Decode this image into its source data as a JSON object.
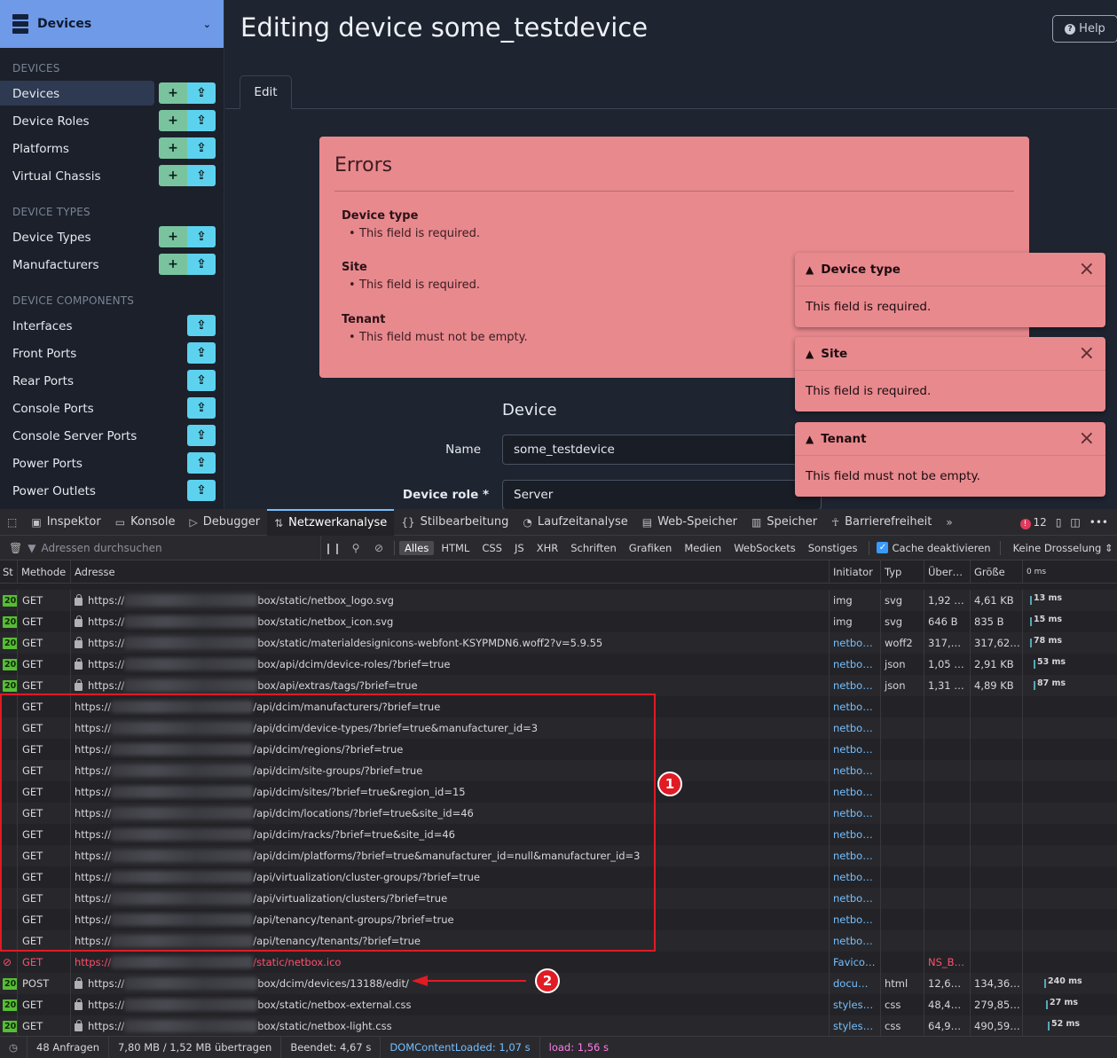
{
  "sidebar": {
    "header": {
      "title": "Devices"
    },
    "sections": [
      {
        "title": "DEVICES",
        "items": [
          {
            "label": "Devices",
            "add": true,
            "active": true
          },
          {
            "label": "Device Roles",
            "add": true
          },
          {
            "label": "Platforms",
            "add": true
          },
          {
            "label": "Virtual Chassis",
            "add": true
          }
        ]
      },
      {
        "title": "DEVICE TYPES",
        "items": [
          {
            "label": "Device Types",
            "add": true
          },
          {
            "label": "Manufacturers",
            "add": true
          }
        ]
      },
      {
        "title": "DEVICE COMPONENTS",
        "items": [
          {
            "label": "Interfaces",
            "add": false
          },
          {
            "label": "Front Ports",
            "add": false
          },
          {
            "label": "Rear Ports",
            "add": false
          },
          {
            "label": "Console Ports",
            "add": false
          },
          {
            "label": "Console Server Ports",
            "add": false
          },
          {
            "label": "Power Ports",
            "add": false
          },
          {
            "label": "Power Outlets",
            "add": false
          }
        ]
      }
    ],
    "add_glyph": "+",
    "import_glyph": "⇪"
  },
  "main": {
    "title": "Editing device some_testdevice",
    "help_label": "Help",
    "tab_edit": "Edit",
    "errors": {
      "heading": "Errors",
      "items": [
        {
          "field": "Device type",
          "message": "This field is required."
        },
        {
          "field": "Site",
          "message": "This field is required."
        },
        {
          "field": "Tenant",
          "message": "This field must not be empty."
        }
      ]
    },
    "form": {
      "section": "Device",
      "name_label": "Name",
      "name_value": "some_testdevice",
      "role_label": "Device role",
      "role_required": "*",
      "role_value": "Server"
    }
  },
  "toasts": [
    {
      "title": "Device type",
      "message": "This field is required."
    },
    {
      "title": "Site",
      "message": "This field is required."
    },
    {
      "title": "Tenant",
      "message": "This field must not be empty."
    }
  ],
  "devtools": {
    "tabs": [
      "Inspektor",
      "Konsole",
      "Debugger",
      "Netzwerkanalyse",
      "Stilbearbeitung",
      "Laufzeitanalyse",
      "Web-Speicher",
      "Speicher",
      "Barrierefreiheit"
    ],
    "active_tab": "Netzwerkanalyse",
    "error_count": "12",
    "filter_placeholder": "Adressen durchsuchen",
    "filter_types": [
      "Alles",
      "HTML",
      "CSS",
      "JS",
      "XHR",
      "Schriften",
      "Grafiken",
      "Medien",
      "WebSockets",
      "Sonstiges"
    ],
    "cache_label": "Cache deaktivieren",
    "throttle_label": "Keine Drosselung ⇕",
    "columns": {
      "status": "St",
      "method": "Methode",
      "address": "Adresse",
      "initiator": "Initiator",
      "type": "Typ",
      "transferred": "Über…",
      "size": "Größe",
      "waterfall": "0 ms"
    },
    "rows": [
      {
        "status": "20",
        "method": "GET",
        "scheme": "https://",
        "path": "box/static/netbox_logo.svg",
        "initiator": "img",
        "type": "svg",
        "transferred": "1,92 …",
        "size": "4,61 KB",
        "time": "13 ms",
        "lock": true
      },
      {
        "status": "20",
        "method": "GET",
        "scheme": "https://",
        "path": "box/static/netbox_icon.svg",
        "initiator": "img",
        "type": "svg",
        "transferred": "646 B",
        "size": "835 B",
        "time": "15 ms",
        "lock": true
      },
      {
        "status": "20",
        "method": "GET",
        "scheme": "https://",
        "path": "box/static/materialdesignicons-webfont-KSYPMDN6.woff2?v=5.9.55",
        "initiator": "netbo…",
        "type": "woff2",
        "transferred": "317,…",
        "size": "317,62…",
        "time": "78 ms",
        "lock": true
      },
      {
        "status": "20",
        "method": "GET",
        "scheme": "https://",
        "path": "box/api/dcim/device-roles/?brief=true",
        "initiator": "netbo…",
        "type": "json",
        "transferred": "1,05 …",
        "size": "2,91 KB",
        "time": "53 ms",
        "lock": true
      },
      {
        "status": "20",
        "method": "GET",
        "scheme": "https://",
        "path": "box/api/extras/tags/?brief=true",
        "initiator": "netbo…",
        "type": "json",
        "transferred": "1,31 …",
        "size": "4,89 KB",
        "time": "87 ms",
        "lock": true
      },
      {
        "status": "",
        "method": "GET",
        "scheme": "https://",
        "path": "/api/dcim/manufacturers/?brief=true",
        "initiator": "netbo…",
        "type": "",
        "transferred": "",
        "size": "",
        "time": "",
        "lock": false
      },
      {
        "status": "",
        "method": "GET",
        "scheme": "https://",
        "path": "/api/dcim/device-types/?brief=true&manufacturer_id=3",
        "initiator": "netbo…",
        "type": "",
        "transferred": "",
        "size": "",
        "time": "",
        "lock": false
      },
      {
        "status": "",
        "method": "GET",
        "scheme": "https://",
        "path": "/api/dcim/regions/?brief=true",
        "initiator": "netbo…",
        "type": "",
        "transferred": "",
        "size": "",
        "time": "",
        "lock": false
      },
      {
        "status": "",
        "method": "GET",
        "scheme": "https://",
        "path": "/api/dcim/site-groups/?brief=true",
        "initiator": "netbo…",
        "type": "",
        "transferred": "",
        "size": "",
        "time": "",
        "lock": false
      },
      {
        "status": "",
        "method": "GET",
        "scheme": "https://",
        "path": "/api/dcim/sites/?brief=true&region_id=15",
        "initiator": "netbo…",
        "type": "",
        "transferred": "",
        "size": "",
        "time": "",
        "lock": false
      },
      {
        "status": "",
        "method": "GET",
        "scheme": "https://",
        "path": "/api/dcim/locations/?brief=true&site_id=46",
        "initiator": "netbo…",
        "type": "",
        "transferred": "",
        "size": "",
        "time": "",
        "lock": false
      },
      {
        "status": "",
        "method": "GET",
        "scheme": "https://",
        "path": "/api/dcim/racks/?brief=true&site_id=46",
        "initiator": "netbo…",
        "type": "",
        "transferred": "",
        "size": "",
        "time": "",
        "lock": false
      },
      {
        "status": "",
        "method": "GET",
        "scheme": "https://",
        "path": "/api/dcim/platforms/?brief=true&manufacturer_id=null&manufacturer_id=3",
        "initiator": "netbo…",
        "type": "",
        "transferred": "",
        "size": "",
        "time": "",
        "lock": false
      },
      {
        "status": "",
        "method": "GET",
        "scheme": "https://",
        "path": "/api/virtualization/cluster-groups/?brief=true",
        "initiator": "netbo…",
        "type": "",
        "transferred": "",
        "size": "",
        "time": "",
        "lock": false
      },
      {
        "status": "",
        "method": "GET",
        "scheme": "https://",
        "path": "/api/virtualization/clusters/?brief=true",
        "initiator": "netbo…",
        "type": "",
        "transferred": "",
        "size": "",
        "time": "",
        "lock": false
      },
      {
        "status": "",
        "method": "GET",
        "scheme": "https://",
        "path": "/api/tenancy/tenant-groups/?brief=true",
        "initiator": "netbo…",
        "type": "",
        "transferred": "",
        "size": "",
        "time": "",
        "lock": false
      },
      {
        "status": "",
        "method": "GET",
        "scheme": "https://",
        "path": "/api/tenancy/tenants/?brief=true",
        "initiator": "netbo…",
        "type": "",
        "transferred": "",
        "size": "",
        "time": "",
        "lock": false
      },
      {
        "status": "blocked",
        "method": "GET",
        "scheme": "https://",
        "path": "/static/netbox.ico",
        "initiator": "Favico…",
        "type": "",
        "transferred": "NS_B…",
        "size": "",
        "time": "",
        "lock": false
      },
      {
        "status": "20",
        "method": "POST",
        "scheme": "https://",
        "path": "box/dcim/devices/13188/edit/",
        "initiator": "docu…",
        "type": "html",
        "transferred": "12,6…",
        "size": "134,36…",
        "time": "240 ms",
        "lock": true
      },
      {
        "status": "20",
        "method": "GET",
        "scheme": "https://",
        "path": "box/static/netbox-external.css",
        "initiator": "styles…",
        "type": "css",
        "transferred": "48,4…",
        "size": "279,85…",
        "time": "27 ms",
        "lock": true
      },
      {
        "status": "20",
        "method": "GET",
        "scheme": "https://",
        "path": "box/static/netbox-light.css",
        "initiator": "styles…",
        "type": "css",
        "transferred": "64,9…",
        "size": "490,59…",
        "time": "52 ms",
        "lock": true
      }
    ],
    "status_bar": {
      "requests": "48 Anfragen",
      "transferred": "7,80 MB / 1,52 MB übertragen",
      "finished": "Beendet: 4,67 s",
      "dom": "DOMContentLoaded: 1,07 s",
      "load": "load: 1,56 s"
    }
  },
  "annotations": {
    "marker1": "1",
    "marker2": "2"
  }
}
